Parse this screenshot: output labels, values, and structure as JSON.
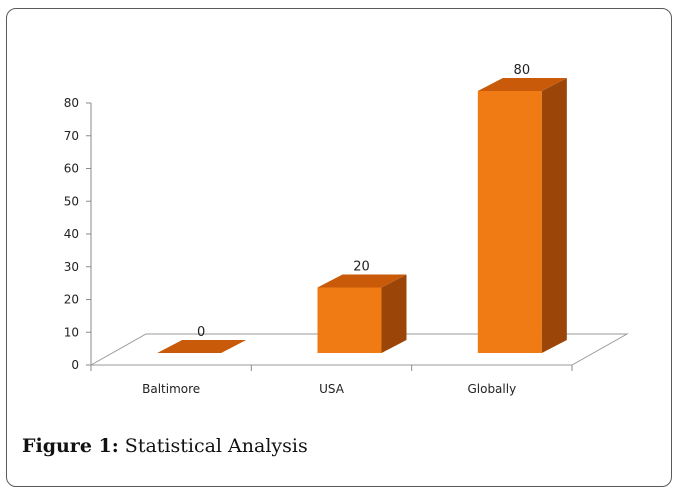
{
  "caption": {
    "label": "Figure 1:",
    "text": " Statistical Analysis"
  },
  "chart_data": {
    "type": "bar",
    "style": "3d",
    "categories": [
      "Baltimore",
      "USA",
      "Globally"
    ],
    "values": [
      0,
      20,
      80
    ],
    "data_labels": [
      "0",
      "20",
      "80"
    ],
    "ylim": [
      0,
      80
    ],
    "yticks": [
      "0",
      "10",
      "20",
      "30",
      "40",
      "50",
      "60",
      "70",
      "80"
    ],
    "xlabel": "",
    "ylabel": "",
    "grid": false,
    "legend": "none",
    "colors": {
      "front": "#f07a13",
      "top": "#c85a0a",
      "side": "#9c4509",
      "floor_edge": "#9a9a9a"
    }
  }
}
